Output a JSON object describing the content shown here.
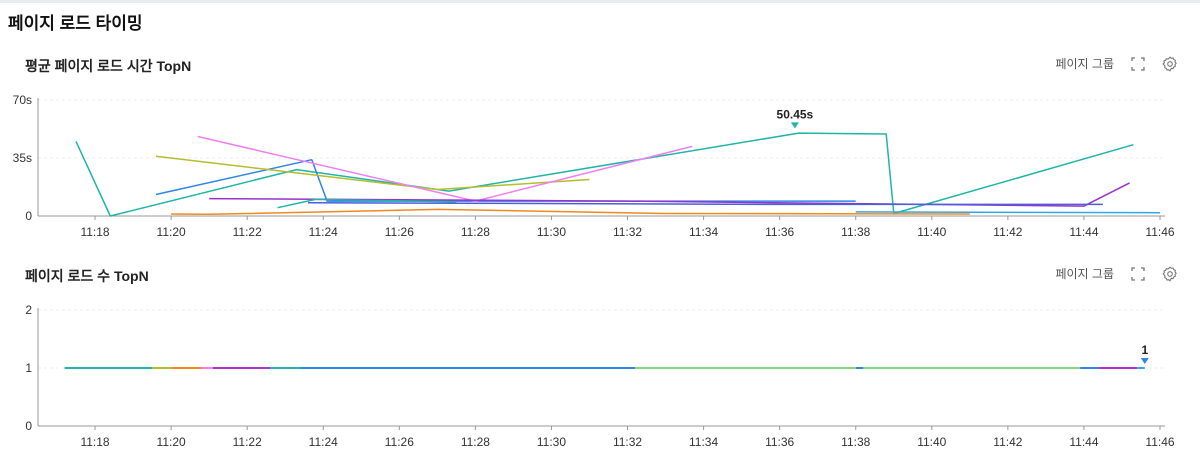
{
  "page": {
    "title": "페이지 로드 타이밍"
  },
  "panels": [
    {
      "title": "평균 페이지 로드 시간 TopN",
      "group_label": "페이지 그룹",
      "fullscreen_icon": "fullscreen-icon",
      "settings_icon": "gear-icon"
    },
    {
      "title": "페이지 로드 수 TopN",
      "group_label": "페이지 그룹",
      "fullscreen_icon": "fullscreen-icon",
      "settings_icon": "gear-icon"
    }
  ],
  "chart_data": [
    {
      "type": "line",
      "title": "평균 페이지 로드 시간 TopN",
      "x_tick_labels": [
        "11:18",
        "11:20",
        "11:22",
        "11:24",
        "11:26",
        "11:28",
        "11:30",
        "11:32",
        "11:34",
        "11:36",
        "11:38",
        "11:40",
        "11:42",
        "11:44",
        "11:46"
      ],
      "xlim": [
        "11:16.5",
        "11:46"
      ],
      "y_tick_labels": [
        "0",
        "35s",
        "70s"
      ],
      "ylim": [
        0,
        70
      ],
      "annotation": {
        "label": "50.45s",
        "x": "11:36.4",
        "y": 50.45,
        "color": "#1fb5a8"
      },
      "series": [
        {
          "color": "#1fb5a8",
          "points": [
            [
              "11:17.5",
              45
            ],
            [
              "11:18.4",
              0
            ],
            [
              "11:23.3",
              28
            ],
            [
              "11:27.3",
              15
            ],
            [
              "11:36.5",
              50
            ],
            [
              "11:38.8",
              49.5
            ],
            [
              "11:39.0",
              1.5
            ],
            [
              "11:45.3",
              43
            ]
          ]
        },
        {
          "color": "#2f86e8",
          "points": [
            [
              "11:19.6",
              13
            ],
            [
              "11:23.7",
              34
            ],
            [
              "11:24.1",
              9
            ],
            [
              "11:38.0",
              9
            ]
          ]
        },
        {
          "color": "#b5bd2e",
          "points": [
            [
              "11:19.6",
              36
            ],
            [
              "11:27.0",
              16
            ],
            [
              "11:31.0",
              22
            ]
          ]
        },
        {
          "color": "#ef7ff0",
          "points": [
            [
              "11:20.7",
              48
            ],
            [
              "11:28.0",
              9
            ],
            [
              "11:33.7",
              42
            ]
          ]
        },
        {
          "color": "#9932cc",
          "points": [
            [
              "11:21.0",
              10.5
            ],
            [
              "11:32.0",
              9
            ],
            [
              "11:44.0",
              6
            ],
            [
              "11:45.2",
              20
            ]
          ]
        },
        {
          "color": "#4a5fd8",
          "points": [
            [
              "11:23.6",
              8
            ],
            [
              "11:36.0",
              7
            ],
            [
              "11:44.5",
              7
            ]
          ]
        },
        {
          "color": "#f08a1e",
          "points": [
            [
              "11:20.0",
              1.2
            ],
            [
              "11:21.0",
              1
            ],
            [
              "11:27.0",
              4
            ],
            [
              "11:33.0",
              1.5
            ],
            [
              "11:41.0",
              1.2
            ]
          ]
        },
        {
          "color": "#1fb5a8",
          "points": [
            [
              "11:22.8",
              5
            ],
            [
              "11:23.8",
              10
            ],
            [
              "11:27.5",
              8.5
            ]
          ]
        },
        {
          "color": "#2ea8e8",
          "points": [
            [
              "11:38.0",
              2.5
            ],
            [
              "11:46.0",
              2
            ]
          ]
        }
      ]
    },
    {
      "type": "line",
      "title": "페이지 로드 수 TopN",
      "x_tick_labels": [
        "11:18",
        "11:20",
        "11:22",
        "11:24",
        "11:26",
        "11:28",
        "11:30",
        "11:32",
        "11:34",
        "11:36",
        "11:38",
        "11:40",
        "11:42",
        "11:44",
        "11:46"
      ],
      "xlim": [
        "11:16.5",
        "11:46"
      ],
      "y_tick_labels": [
        "0",
        "1",
        "2"
      ],
      "ylim": [
        0,
        2
      ],
      "annotation": {
        "label": "1",
        "x": "11:45.6",
        "y": 1,
        "color": "#2f86e8"
      },
      "segments": [
        {
          "color": "#1fb5a8",
          "from": "11:17.2",
          "to": "11:19.5",
          "value": 1
        },
        {
          "color": "#b5bd2e",
          "from": "11:19.5",
          "to": "11:20.0",
          "value": 1
        },
        {
          "color": "#f08a1e",
          "from": "11:20.0",
          "to": "11:20.8",
          "value": 1
        },
        {
          "color": "#ef7ff0",
          "from": "11:20.8",
          "to": "11:21.1",
          "value": 1
        },
        {
          "color": "#b030c8",
          "from": "11:21.1",
          "to": "11:22.6",
          "value": 1
        },
        {
          "color": "#1fb5a8",
          "from": "11:22.6",
          "to": "11:23.4",
          "value": 1
        },
        {
          "color": "#2f86e8",
          "from": "11:23.4",
          "to": "11:32.2",
          "value": 1
        },
        {
          "color": "#7ed98a",
          "from": "11:32.2",
          "to": "11:38.0",
          "value": 1
        },
        {
          "color": "#2f86e8",
          "from": "11:38.0",
          "to": "11:38.2",
          "value": 1
        },
        {
          "color": "#7ed98a",
          "from": "11:38.2",
          "to": "11:43.9",
          "value": 1
        },
        {
          "color": "#2f86e8",
          "from": "11:43.9",
          "to": "11:44.4",
          "value": 1
        },
        {
          "color": "#b030c8",
          "from": "11:44.4",
          "to": "11:45.4",
          "value": 1
        },
        {
          "color": "#2ea8e8",
          "from": "11:45.4",
          "to": "11:45.6",
          "value": 1
        }
      ]
    }
  ]
}
